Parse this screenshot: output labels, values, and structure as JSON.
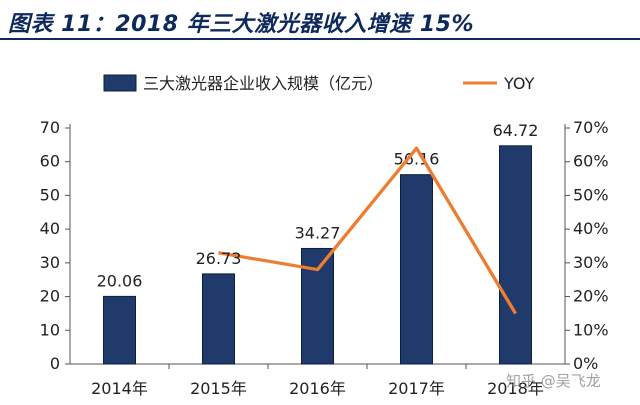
{
  "header": {
    "title": "图表 11：2018 年三大激光器收入增速 15%"
  },
  "watermark": "知乎 @吴飞龙",
  "colors": {
    "bar": "#1f3a6b",
    "bar_edge": "#0d1f3f",
    "line": "#ed7d31",
    "title": "#0e2a5c"
  },
  "chart_data": {
    "type": "bar",
    "categories": [
      "2014年",
      "2015年",
      "2016年",
      "2017年",
      "2018年"
    ],
    "series": [
      {
        "name": "三大激光器企业收入规模（亿元）",
        "type": "bar",
        "axis": "left",
        "values": [
          20.06,
          26.73,
          34.27,
          56.16,
          64.72
        ],
        "labels": [
          "20.06",
          "26.73",
          "34.27",
          "56.16",
          "64.72"
        ]
      },
      {
        "name": "YOY",
        "type": "line",
        "axis": "right",
        "values": [
          null,
          33,
          28,
          64,
          15
        ]
      }
    ],
    "y_left": {
      "min": 0,
      "max": 70,
      "ticks": [
        "0",
        "10",
        "20",
        "30",
        "40",
        "50",
        "60",
        "70"
      ]
    },
    "y_right": {
      "min": 0,
      "max": 70,
      "ticks": [
        "0%",
        "10%",
        "20%",
        "30%",
        "40%",
        "50%",
        "60%",
        "70%"
      ]
    },
    "legend_position": "top",
    "grid": false
  }
}
